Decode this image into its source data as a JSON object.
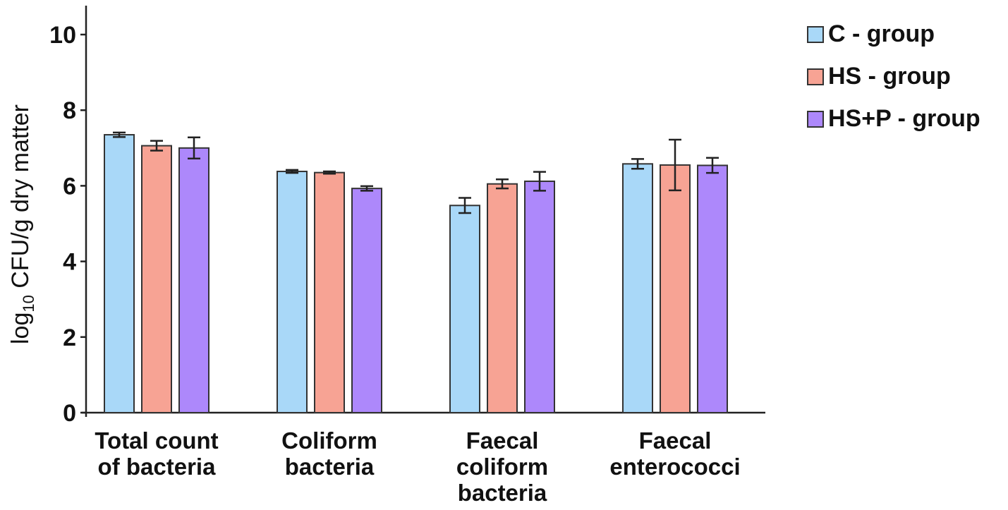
{
  "chart_data": {
    "type": "bar",
    "title": "",
    "ylabel": {
      "prefix": "log",
      "subscript": "10",
      "suffix": " CFU/g dry matter"
    },
    "ylim": [
      0,
      10.5
    ],
    "yticks": [
      0,
      2,
      4,
      6,
      8,
      10
    ],
    "grid": false,
    "legend_position": "top-right",
    "categories": [
      [
        "Total count",
        "of bacteria"
      ],
      [
        "Coliform",
        "bacteria"
      ],
      [
        "Faecal",
        "coliform",
        "bacteria"
      ],
      [
        "Faecal",
        "enterococci"
      ]
    ],
    "series": [
      {
        "name": "C - group",
        "color": "#a9d8f8",
        "values": [
          7.35,
          6.38,
          5.48,
          6.58
        ],
        "errors": [
          0.06,
          0.04,
          0.2,
          0.13
        ]
      },
      {
        "name": "HS - group",
        "color": "#f7a394",
        "values": [
          7.06,
          6.35,
          6.05,
          6.55
        ],
        "errors": [
          0.13,
          0.03,
          0.12,
          0.67
        ]
      },
      {
        "name": "HS+P - group",
        "color": "#ad88fb",
        "values": [
          7.0,
          5.93,
          6.12,
          6.54
        ],
        "errors": [
          0.28,
          0.06,
          0.25,
          0.2
        ]
      }
    ]
  }
}
